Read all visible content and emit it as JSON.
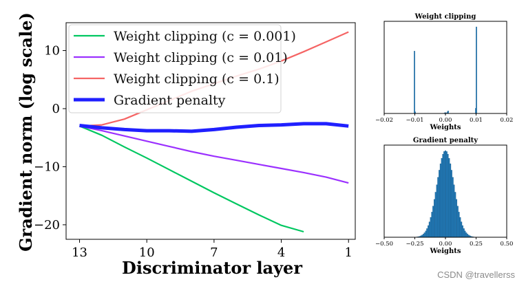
{
  "chart_data": [
    {
      "type": "line",
      "title": "",
      "xlabel": "Discriminator layer",
      "ylabel": "Gradient norm (log scale)",
      "xlim": [
        13.6,
        0.7
      ],
      "ylim": [
        -22.5,
        14.8
      ],
      "x_ticks": [
        13,
        10,
        7,
        4,
        1
      ],
      "y_ticks": [
        10,
        0,
        -10,
        -20
      ],
      "x_tick_labels": [
        "13",
        "10",
        "7",
        "4",
        "1"
      ],
      "y_tick_labels": [
        "10",
        "0",
        "−10",
        "−20"
      ],
      "legend_position": "top-left",
      "series": [
        {
          "name": "Weight clipping (c = 0.001)",
          "color": "#00c760",
          "x": [
            13,
            12,
            11,
            10,
            9,
            8,
            7,
            6,
            5,
            4,
            3
          ],
          "y": [
            -3.0,
            -4.6,
            -6.6,
            -8.5,
            -10.5,
            -12.5,
            -14.5,
            -16.4,
            -18.3,
            -20.1,
            -21.2
          ]
        },
        {
          "name": "Weight clipping (c = 0.01)",
          "color": "#9b30ff",
          "x": [
            13,
            12,
            11,
            10,
            9,
            8,
            7,
            6,
            5,
            4,
            3,
            2,
            1
          ],
          "y": [
            -3.0,
            -3.8,
            -4.7,
            -5.6,
            -6.5,
            -7.4,
            -8.2,
            -8.9,
            -9.6,
            -10.3,
            -11.0,
            -11.8,
            -12.8
          ]
        },
        {
          "name": "Weight clipping (c = 0.1)",
          "color": "#f56464",
          "x": [
            13,
            12,
            11,
            10,
            9,
            8,
            7,
            6,
            5,
            4,
            3,
            2,
            1
          ],
          "y": [
            -3.0,
            -2.8,
            -1.8,
            -0.2,
            1.4,
            3.0,
            4.3,
            5.6,
            6.8,
            8.2,
            9.8,
            11.5,
            13.2
          ]
        },
        {
          "name": "Gradient penalty",
          "color": "#2020ff",
          "x": [
            13,
            12,
            11,
            10,
            9,
            8,
            7,
            6,
            5,
            4,
            3,
            2,
            1
          ],
          "y": [
            -2.9,
            -3.3,
            -3.6,
            -3.8,
            -3.8,
            -3.9,
            -3.6,
            -3.2,
            -2.9,
            -2.8,
            -2.6,
            -2.6,
            -3.0
          ]
        }
      ]
    },
    {
      "type": "histogram",
      "title": "Weight clipping",
      "xlabel": "Weights",
      "xlim": [
        -0.02,
        0.02
      ],
      "x_ticks": [
        -0.02,
        -0.01,
        0.0,
        0.01,
        0.02
      ],
      "x_tick_labels": [
        "−0.02",
        "−0.01",
        "0.00",
        "0.01",
        "0.02"
      ],
      "ylim": [
        0,
        1.0
      ],
      "bin_width": 0.0002,
      "bin_centers": [
        -0.0101,
        -0.0099,
        -0.0003,
        -0.0001,
        0.0001,
        0.0003,
        0.0007,
        0.0009,
        0.0099,
        0.0101
      ],
      "counts": [
        0.72,
        0.02,
        0.005,
        0.01,
        0.01,
        0.005,
        0.02,
        0.03,
        0.06,
        1.0
      ],
      "color": "#1f77b4"
    },
    {
      "type": "histogram",
      "title": "Gradient penalty",
      "xlabel": "Weights",
      "xlim": [
        -0.5,
        0.5
      ],
      "x_ticks": [
        -0.5,
        -0.25,
        0.0,
        0.25,
        0.5
      ],
      "x_tick_labels": [
        "−0.50",
        "−0.25",
        "0.00",
        "0.25",
        "0.50"
      ],
      "ylim": [
        0,
        1.0
      ],
      "distribution": "normal",
      "mean": 0.0,
      "std": 0.07,
      "range": [
        -0.28,
        0.28
      ],
      "bin_width": 0.01,
      "color": "#1f77b4"
    }
  ],
  "watermark": "CSDN @travellerss"
}
